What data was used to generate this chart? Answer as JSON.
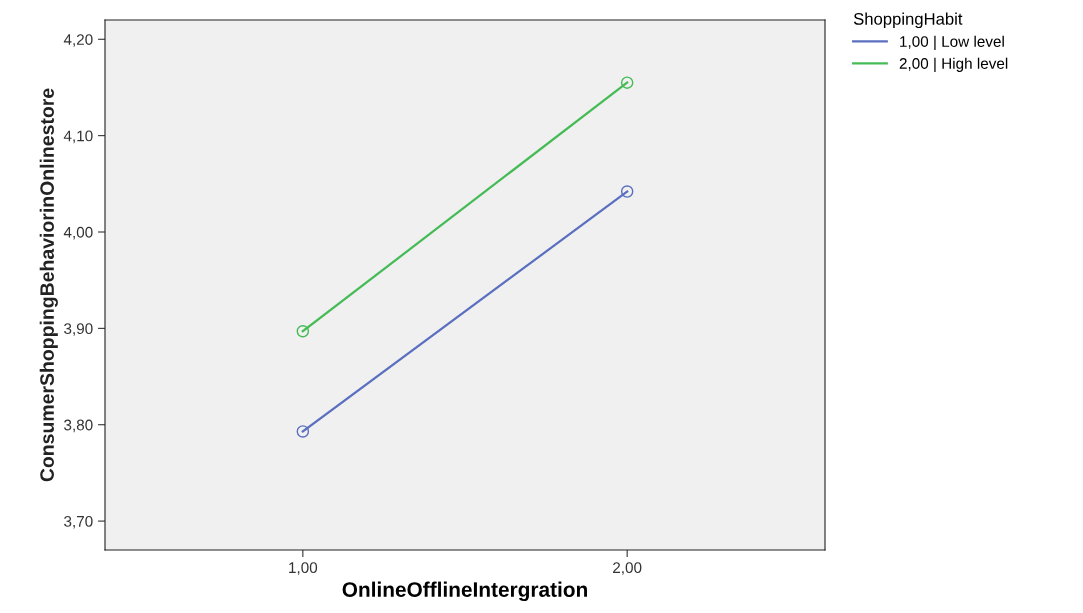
{
  "chart_data": {
    "type": "line",
    "xlabel": "OnlineOfflineIntergration",
    "ylabel": "ConsumerShoppingBehaviorinOnlinestore",
    "legend_title": "ShoppingHabit",
    "categories": [
      "1,00",
      "2,00"
    ],
    "series": [
      {
        "name": "1,00 | Low level",
        "color": "#5a6fc0",
        "values": [
          3.793,
          4.042
        ]
      },
      {
        "name": "2,00 | High level",
        "color": "#44bb55",
        "values": [
          3.897,
          4.155
        ]
      }
    ],
    "ylim": [
      3.67,
      4.22
    ],
    "yticks": [
      {
        "value": 3.7,
        "label": "3,70"
      },
      {
        "value": 3.8,
        "label": "3,80"
      },
      {
        "value": 3.9,
        "label": "3,90"
      },
      {
        "value": 4.0,
        "label": "4,00"
      },
      {
        "value": 4.1,
        "label": "4,10"
      },
      {
        "value": 4.2,
        "label": "4,20"
      }
    ],
    "grid": false,
    "legend": "top right",
    "marker": "circle",
    "line_style": "solid"
  }
}
